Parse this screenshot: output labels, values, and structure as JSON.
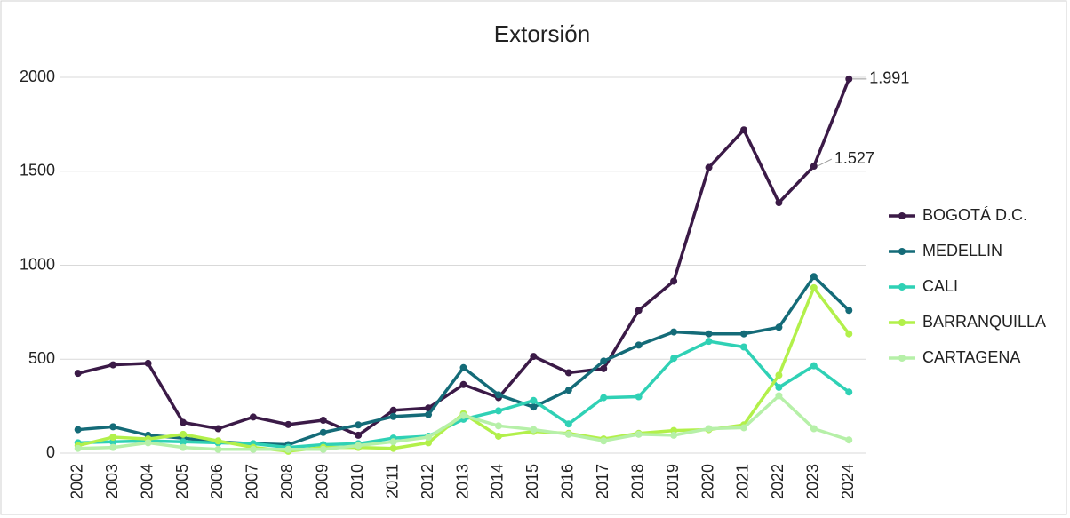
{
  "chart_data": {
    "type": "line",
    "title": "Extorsión",
    "categories": [
      "2002",
      "2003",
      "2004",
      "2005",
      "2006",
      "2007",
      "2008",
      "2009",
      "2010",
      "2011",
      "2012",
      "2013",
      "2014",
      "2015",
      "2016",
      "2017",
      "2018",
      "2019",
      "2020",
      "2021",
      "2022",
      "2023",
      "2024"
    ],
    "series": [
      {
        "name": "BOGOTÁ D.C.",
        "color": "#3b1a47",
        "values": [
          425,
          470,
          478,
          163,
          130,
          192,
          152,
          175,
          95,
          228,
          240,
          365,
          295,
          515,
          428,
          450,
          760,
          915,
          1520,
          1720,
          1333,
          1527,
          1991
        ],
        "value_labels": [
          null,
          null,
          null,
          null,
          null,
          null,
          null,
          null,
          null,
          null,
          null,
          null,
          null,
          null,
          null,
          null,
          null,
          null,
          null,
          null,
          null,
          "1.527",
          "1.991"
        ]
      },
      {
        "name": "MEDELLIN",
        "color": "#146b78",
        "values": [
          125,
          140,
          95,
          80,
          60,
          50,
          45,
          110,
          150,
          195,
          205,
          455,
          310,
          245,
          335,
          490,
          575,
          645,
          635,
          635,
          670,
          940,
          760
        ]
      },
      {
        "name": "CALI",
        "color": "#2fd1b5",
        "values": [
          55,
          60,
          65,
          60,
          55,
          50,
          30,
          45,
          50,
          80,
          90,
          180,
          225,
          280,
          155,
          295,
          300,
          505,
          595,
          565,
          350,
          465,
          325
        ]
      },
      {
        "name": "BARRANQUILLA",
        "color": "#b2f04a",
        "values": [
          40,
          85,
          75,
          100,
          65,
          30,
          10,
          30,
          30,
          25,
          55,
          210,
          90,
          115,
          105,
          75,
          105,
          120,
          125,
          150,
          415,
          880,
          635
        ]
      },
      {
        "name": "CARTAGENA",
        "color": "#b6f0a8",
        "values": [
          25,
          30,
          55,
          30,
          20,
          20,
          20,
          20,
          40,
          60,
          85,
          200,
          145,
          125,
          100,
          65,
          100,
          95,
          130,
          135,
          305,
          130,
          70
        ]
      }
    ],
    "ylim": [
      0,
      2000
    ],
    "yticks": [
      0,
      500,
      1000,
      1500,
      2000
    ],
    "grid": true,
    "legend": "right"
  }
}
